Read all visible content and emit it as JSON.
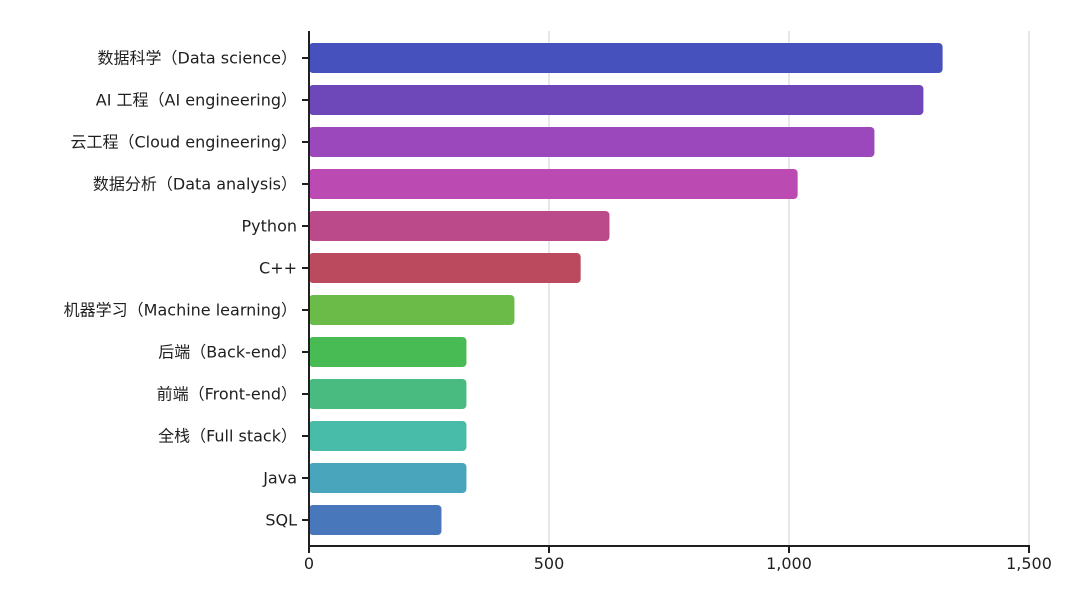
{
  "chart_data": {
    "type": "bar",
    "orientation": "horizontal",
    "categories": [
      "数据科学（Data science）",
      "AI 工程（AI engineering）",
      "云工程（Cloud engineering）",
      "数据分析（Data analysis）",
      "Python",
      "C++",
      "机器学习（Machine learning）",
      "后端（Back-end）",
      "前端（Front-end）",
      "全栈（Full stack）",
      "Java",
      "SQL"
    ],
    "values": [
      1320,
      1280,
      1178,
      1018,
      626,
      566,
      428,
      328,
      328,
      328,
      328,
      276
    ],
    "colors": [
      "#4651bd",
      "#6e48b8",
      "#9b48bc",
      "#bb4ab3",
      "#bb4a8a",
      "#bb4a5f",
      "#6bbb49",
      "#49bb55",
      "#49bb80",
      "#49bba9",
      "#48a5bb",
      "#4878bb"
    ],
    "xticks": [
      0,
      500,
      1000,
      1500
    ],
    "xtick_labels": [
      "0",
      "500",
      "1,000",
      "1,500"
    ],
    "xlim": [
      0,
      1500
    ],
    "grid": true,
    "title": "",
    "xlabel": "",
    "ylabel": ""
  }
}
